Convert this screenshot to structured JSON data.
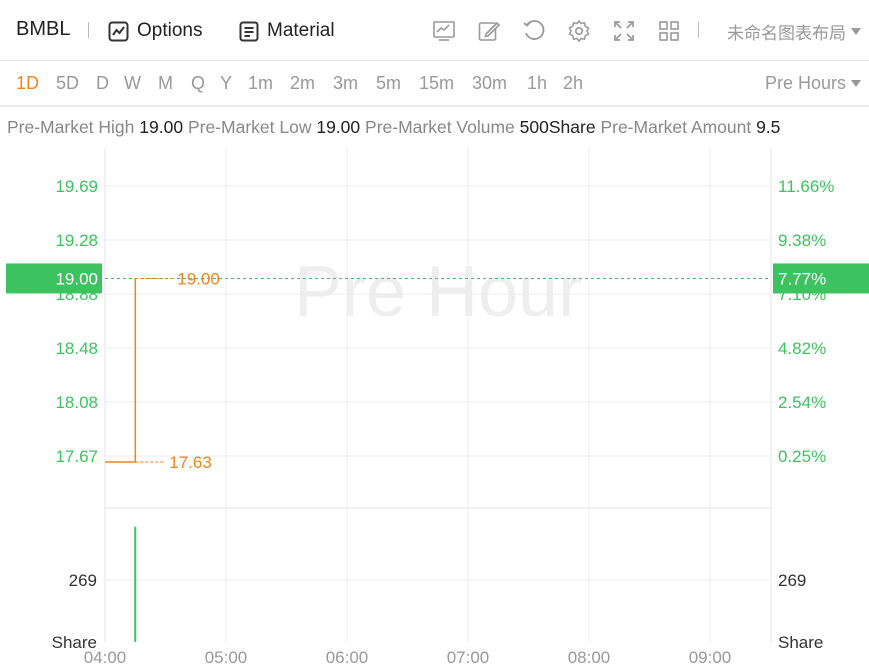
{
  "toolbar": {
    "ticker": "BMBL",
    "options_label": "Options",
    "material_label": "Material",
    "layout_label": "未命名图表布局"
  },
  "periods": [
    "1D",
    "5D",
    "D",
    "W",
    "M",
    "Q",
    "Y",
    "1m",
    "2m",
    "3m",
    "5m",
    "15m",
    "30m",
    "1h",
    "2h"
  ],
  "active_period": "1D",
  "session_label": "Pre Hours",
  "stats": [
    {
      "label": "Pre-Market High",
      "value": "19.00"
    },
    {
      "label": "Pre-Market Low",
      "value": "19.00"
    },
    {
      "label": "Pre-Market Volume",
      "value": "500Share"
    },
    {
      "label": "Pre-Market Amount",
      "value": "9.5"
    }
  ],
  "colors": {
    "up": "#3cc35f",
    "price_line": "#f0851e",
    "grid": "#ececec",
    "watermark": "#eeeeee"
  },
  "chart_data": {
    "type": "line",
    "watermark": "Pre Hour",
    "x_ticks": [
      "04:00",
      "05:00",
      "06:00",
      "07:00",
      "08:00",
      "09:00"
    ],
    "price_ticks_left": [
      "19.69",
      "19.28",
      "18.88",
      "18.48",
      "18.08",
      "17.67"
    ],
    "percent_ticks_right": [
      "11.66%",
      "9.38%",
      "7.10%",
      "4.82%",
      "2.54%",
      "0.25%"
    ],
    "price_series": [
      {
        "x": "04:00",
        "y": 17.63
      },
      {
        "x": "04:15",
        "y": 17.63
      },
      {
        "x": "04:15",
        "y": 19.0
      }
    ],
    "y_range": [
      17.63,
      19.69
    ],
    "current_price_label": "19.00",
    "current_percent_label": "7.77%",
    "high_annotation": "19.00",
    "low_annotation": "17.63",
    "volume_ticks": [
      "269"
    ],
    "volume_unit": "Share",
    "volume_bars": [
      {
        "x": "04:15",
        "value": 500
      }
    ],
    "volume_range": [
      0,
      538
    ]
  }
}
